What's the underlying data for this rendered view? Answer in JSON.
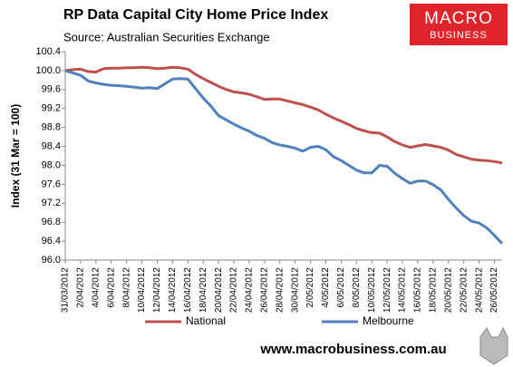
{
  "chart_data": {
    "type": "line",
    "title": "RP Data Capital City Home Price Index",
    "subtitle": "Source: Australian Securities Exchange",
    "y_label": "Index (31 Mar = 100)",
    "footer": "www.macrobusiness.com.au",
    "logo": {
      "top": "MACRO",
      "bottom": "BUSINESS"
    },
    "categories": [
      "31/03/2012",
      null,
      "2/04/2012",
      null,
      "4/04/2012",
      null,
      "6/04/2012",
      null,
      "8/04/2012",
      null,
      "10/04/2012",
      null,
      "12/04/2012",
      null,
      "14/04/2012",
      null,
      "16/04/2012",
      null,
      "18/04/2012",
      null,
      "20/04/2012",
      null,
      "22/04/2012",
      null,
      "24/04/2012",
      null,
      "26/04/2012",
      null,
      "28/04/2012",
      null,
      "30/04/2012",
      null,
      "2/05/2012",
      null,
      "4/05/2012",
      null,
      "6/05/2012",
      null,
      "8/05/2012",
      null,
      "10/05/2012",
      null,
      "12/05/2012",
      null,
      "14/05/2012",
      null,
      "16/05/2012",
      null,
      "18/05/2012",
      null,
      "20/05/2012",
      null,
      "22/05/2012",
      null,
      "24/05/2012",
      null,
      "26/05/2012",
      null
    ],
    "series": [
      {
        "name": "National",
        "color": "#c0504d",
        "values": [
          100.0,
          100.02,
          100.03,
          99.98,
          99.97,
          100.04,
          100.05,
          100.05,
          100.06,
          100.06,
          100.07,
          100.06,
          100.04,
          100.05,
          100.07,
          100.06,
          100.03,
          99.92,
          99.83,
          99.75,
          99.67,
          99.6,
          99.55,
          99.53,
          99.5,
          99.45,
          99.39,
          99.4,
          99.4,
          99.36,
          99.32,
          99.28,
          99.23,
          99.17,
          99.08,
          99.0,
          98.93,
          98.86,
          98.78,
          98.73,
          98.69,
          98.68,
          98.6,
          98.5,
          98.43,
          98.38,
          98.41,
          98.44,
          98.41,
          98.38,
          98.32,
          98.23,
          98.18,
          98.13,
          98.11,
          98.1,
          98.08,
          98.05
        ]
      },
      {
        "name": "Melbourne",
        "color": "#4f81bd",
        "values": [
          100.0,
          99.95,
          99.9,
          99.78,
          99.74,
          99.71,
          99.69,
          99.68,
          99.67,
          99.65,
          99.63,
          99.64,
          99.62,
          99.72,
          99.82,
          99.83,
          99.82,
          99.62,
          99.42,
          99.25,
          99.05,
          98.96,
          98.87,
          98.79,
          98.72,
          98.63,
          98.57,
          98.48,
          98.43,
          98.4,
          98.36,
          98.3,
          98.38,
          98.4,
          98.33,
          98.18,
          98.1,
          98.0,
          97.9,
          97.84,
          97.84,
          98.0,
          97.98,
          97.83,
          97.72,
          97.62,
          97.67,
          97.67,
          97.59,
          97.48,
          97.28,
          97.1,
          96.94,
          96.82,
          96.78,
          96.68,
          96.52,
          96.35
        ]
      }
    ],
    "ylim": [
      96.0,
      100.4
    ],
    "yticks": [
      {
        "value": 96.0,
        "label": "96.0"
      },
      96.4,
      96.8,
      97.2,
      97.6,
      {
        "value": 98.0,
        "label": "98.0"
      },
      98.4,
      98.8,
      99.2,
      99.6,
      {
        "value": 100.0,
        "label": "100.0"
      },
      100.4
    ],
    "grid": false,
    "legend": "bottom"
  }
}
